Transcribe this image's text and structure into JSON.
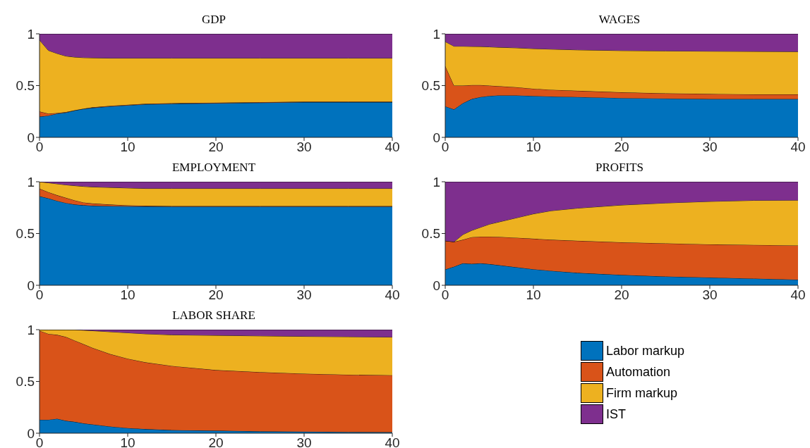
{
  "chart_data": [
    {
      "type": "area",
      "title": "GDP",
      "stacked": true,
      "x": [
        0,
        1,
        2,
        3,
        4,
        5,
        6,
        8,
        10,
        12,
        15,
        20,
        25,
        30,
        35,
        40
      ],
      "xlim": [
        0,
        40
      ],
      "xticks": [
        0,
        10,
        20,
        30,
        40
      ],
      "ylim": [
        0,
        1
      ],
      "yticks": [
        0,
        0.5,
        1
      ],
      "series": [
        {
          "color": "#0072bd",
          "values": [
            0.2,
            0.21,
            0.23,
            0.24,
            0.26,
            0.275,
            0.285,
            0.3,
            0.31,
            0.32,
            0.325,
            0.33,
            0.335,
            0.34,
            0.34,
            0.34
          ]
        },
        {
          "color": "#d95319",
          "values": [
            0.05,
            0.02,
            0.005,
            0.005,
            0.002,
            0.003,
            0.005,
            0.005,
            0.005,
            0.005,
            0.005,
            0.005,
            0.005,
            0.005,
            0.005,
            0.005
          ]
        },
        {
          "color": "#edb120",
          "values": [
            0.69,
            0.61,
            0.575,
            0.54,
            0.513,
            0.492,
            0.478,
            0.46,
            0.45,
            0.44,
            0.435,
            0.43,
            0.425,
            0.42,
            0.42,
            0.42
          ]
        },
        {
          "color": "#7e2f8e",
          "values": [
            0.06,
            0.16,
            0.19,
            0.215,
            0.225,
            0.23,
            0.232,
            0.235,
            0.235,
            0.235,
            0.235,
            0.235,
            0.235,
            0.235,
            0.235,
            0.235
          ]
        }
      ]
    },
    {
      "type": "area",
      "title": "WAGES",
      "stacked": true,
      "x": [
        0,
        1,
        2,
        3,
        4,
        5,
        6,
        8,
        10,
        12,
        15,
        20,
        25,
        30,
        35,
        40
      ],
      "xlim": [
        0,
        40
      ],
      "xticks": [
        0,
        10,
        20,
        30,
        40
      ],
      "ylim": [
        0,
        1
      ],
      "yticks": [
        0,
        0.5,
        1
      ],
      "series": [
        {
          "color": "#0072bd",
          "values": [
            0.3,
            0.27,
            0.33,
            0.37,
            0.39,
            0.4,
            0.405,
            0.405,
            0.4,
            0.395,
            0.39,
            0.38,
            0.375,
            0.37,
            0.37,
            0.37
          ]
        },
        {
          "color": "#d95319",
          "values": [
            0.39,
            0.23,
            0.17,
            0.135,
            0.115,
            0.1,
            0.09,
            0.08,
            0.07,
            0.065,
            0.06,
            0.055,
            0.05,
            0.05,
            0.045,
            0.045
          ]
        },
        {
          "color": "#edb120",
          "values": [
            0.235,
            0.38,
            0.38,
            0.373,
            0.372,
            0.374,
            0.375,
            0.38,
            0.387,
            0.392,
            0.395,
            0.403,
            0.41,
            0.412,
            0.415,
            0.413
          ]
        },
        {
          "color": "#7e2f8e",
          "values": [
            0.075,
            0.12,
            0.12,
            0.122,
            0.123,
            0.126,
            0.13,
            0.135,
            0.143,
            0.148,
            0.155,
            0.162,
            0.165,
            0.168,
            0.17,
            0.172
          ]
        }
      ]
    },
    {
      "type": "area",
      "title": "EMPLOYMENT",
      "stacked": true,
      "x": [
        0,
        1,
        2,
        3,
        4,
        5,
        6,
        8,
        10,
        12,
        15,
        20,
        25,
        30,
        35,
        40
      ],
      "xlim": [
        0,
        40
      ],
      "xticks": [
        0,
        10,
        20,
        30,
        40
      ],
      "ylim": [
        0,
        1
      ],
      "yticks": [
        0,
        0.5,
        1
      ],
      "series": [
        {
          "color": "#0072bd",
          "values": [
            0.86,
            0.84,
            0.815,
            0.795,
            0.78,
            0.773,
            0.768,
            0.765,
            0.763,
            0.762,
            0.76,
            0.76,
            0.76,
            0.76,
            0.76,
            0.76
          ]
        },
        {
          "color": "#d95319",
          "values": [
            0.073,
            0.06,
            0.055,
            0.05,
            0.04,
            0.027,
            0.022,
            0.015,
            0.009,
            0.006,
            0.005,
            0.005,
            0.005,
            0.005,
            0.005,
            0.005
          ]
        },
        {
          "color": "#edb120",
          "values": [
            0.067,
            0.09,
            0.11,
            0.125,
            0.142,
            0.155,
            0.16,
            0.165,
            0.168,
            0.167,
            0.17,
            0.17,
            0.17,
            0.17,
            0.17,
            0.17
          ]
        },
        {
          "color": "#7e2f8e",
          "values": [
            0,
            0.01,
            0.02,
            0.03,
            0.038,
            0.045,
            0.05,
            0.055,
            0.06,
            0.065,
            0.065,
            0.065,
            0.065,
            0.065,
            0.065,
            0.065
          ]
        }
      ]
    },
    {
      "type": "area",
      "title": "PROFITS",
      "stacked": true,
      "x": [
        0,
        1,
        2,
        3,
        4,
        5,
        6,
        8,
        10,
        12,
        15,
        20,
        25,
        30,
        35,
        40
      ],
      "xlim": [
        0,
        40
      ],
      "xticks": [
        0,
        10,
        20,
        30,
        40
      ],
      "ylim": [
        0,
        1
      ],
      "yticks": [
        0,
        0.5,
        1
      ],
      "series": [
        {
          "color": "#0072bd",
          "values": [
            0.153,
            0.18,
            0.212,
            0.207,
            0.212,
            0.205,
            0.195,
            0.175,
            0.155,
            0.14,
            0.12,
            0.1,
            0.085,
            0.075,
            0.065,
            0.054
          ]
        },
        {
          "color": "#d95319",
          "values": [
            0.277,
            0.24,
            0.228,
            0.258,
            0.258,
            0.265,
            0.273,
            0.285,
            0.295,
            0.3,
            0.31,
            0.315,
            0.32,
            0.32,
            0.325,
            0.331
          ]
        },
        {
          "color": "#edb120",
          "values": [
            0,
            0,
            0.05,
            0.065,
            0.09,
            0.12,
            0.142,
            0.19,
            0.24,
            0.28,
            0.315,
            0.36,
            0.39,
            0.415,
            0.43,
            0.437
          ]
        },
        {
          "color": "#7e2f8e",
          "values": [
            0.57,
            0.58,
            0.51,
            0.47,
            0.44,
            0.41,
            0.39,
            0.35,
            0.31,
            0.28,
            0.255,
            0.225,
            0.205,
            0.19,
            0.18,
            0.178
          ]
        }
      ]
    },
    {
      "type": "area",
      "title": "LABOR SHARE",
      "stacked": true,
      "legend": "right",
      "x": [
        0,
        1,
        2,
        3,
        4,
        5,
        6,
        8,
        10,
        12,
        15,
        20,
        25,
        30,
        35,
        40
      ],
      "xlim": [
        0,
        40
      ],
      "xticks": [
        0,
        10,
        20,
        30,
        40
      ],
      "ylim": [
        0,
        1
      ],
      "yticks": [
        0,
        0.5,
        1
      ],
      "series": [
        {
          "name": "Labor markup",
          "color": "#0072bd",
          "values": [
            0.13,
            0.13,
            0.14,
            0.12,
            0.11,
            0.095,
            0.085,
            0.065,
            0.05,
            0.04,
            0.03,
            0.025,
            0.018,
            0.015,
            0.012,
            0.01
          ]
        },
        {
          "name": "Automation",
          "color": "#d95319",
          "values": [
            0.86,
            0.83,
            0.81,
            0.81,
            0.785,
            0.765,
            0.74,
            0.7,
            0.67,
            0.645,
            0.62,
            0.585,
            0.572,
            0.56,
            0.553,
            0.55
          ]
        },
        {
          "name": "Firm markup",
          "color": "#edb120",
          "values": [
            0.01,
            0.04,
            0.05,
            0.07,
            0.105,
            0.135,
            0.165,
            0.215,
            0.25,
            0.275,
            0.3,
            0.335,
            0.35,
            0.36,
            0.367,
            0.368
          ]
        },
        {
          "name": "IST",
          "color": "#7e2f8e",
          "values": [
            0,
            0,
            0,
            0,
            0,
            0.005,
            0.01,
            0.02,
            0.03,
            0.04,
            0.05,
            0.055,
            0.06,
            0.065,
            0.068,
            0.072
          ]
        }
      ]
    }
  ]
}
